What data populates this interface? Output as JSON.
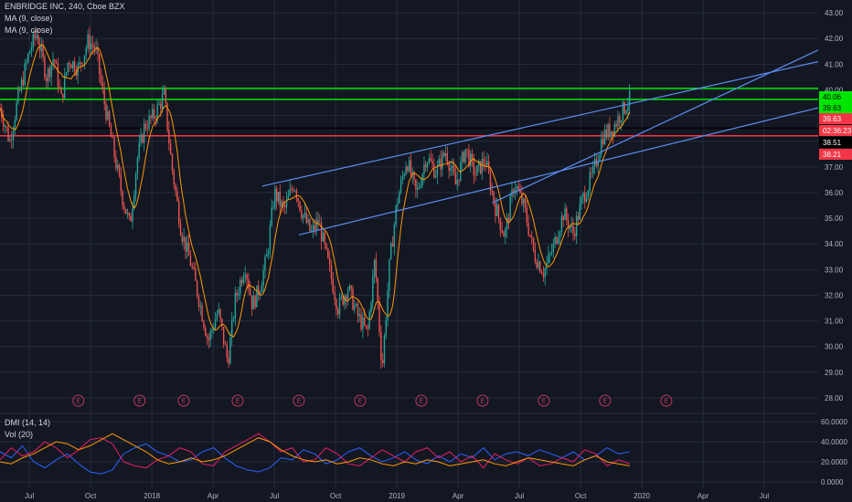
{
  "header": {
    "symbol_line": "ENBRIDGE INC, 240, Cboe BZX",
    "indicator_1": "MA (9, close)",
    "indicator_2": "MA (9, close)"
  },
  "lower_pane": {
    "indicator_1": "DMI (14, 14)",
    "indicator_2": "Vol (20)",
    "y_ticks": [
      "60.0000",
      "40.0000",
      "20.0000",
      "0.0000"
    ]
  },
  "colors": {
    "background": "#131722",
    "grid": "#262b3e",
    "up_candle": "#26a69a",
    "down_candle": "#ef5350",
    "ma_line": "#ff9800",
    "trend_line": "#5b8def",
    "green_level": "#00e600",
    "red_level": "#f23645",
    "black_level": "#000000",
    "di_plus": "#2962ff",
    "di_minus": "#e91e63",
    "adx": "#ff9800"
  },
  "price_tags": [
    {
      "label": "40.06",
      "bg": "#00e600",
      "fg": "#000000"
    },
    {
      "label": "39.63",
      "bg": "#00e600",
      "fg": "#000000"
    },
    {
      "label": "39.63",
      "bg": "#f23645",
      "fg": "#ffffff"
    },
    {
      "label": "02:36:23",
      "bg": "#f23645",
      "fg": "#ffffff"
    },
    {
      "label": "38.51",
      "bg": "#000000",
      "fg": "#ffffff"
    },
    {
      "label": "38.21",
      "bg": "#f23645",
      "fg": "#ffffff"
    }
  ],
  "earnings_marker": "E",
  "earnings_months": [
    2017.7,
    2017.95,
    2018.13,
    2018.35,
    2018.6,
    2018.85,
    2019.1,
    2019.35,
    2019.6,
    2019.85,
    2020.1
  ],
  "chart_data": {
    "type": "candlestick",
    "title": "ENBRIDGE INC, 240, Cboe BZX",
    "xlabel": "",
    "ylabel": "",
    "x_ticks": [
      "Jul",
      "Oct",
      "2018",
      "Apr",
      "Jul",
      "Oct",
      "2019",
      "Apr",
      "Jul",
      "Oct",
      "2020",
      "Apr",
      "Jul"
    ],
    "x_tick_values": [
      2017.5,
      2017.75,
      2018.0,
      2018.25,
      2018.5,
      2018.75,
      2019.0,
      2019.25,
      2019.5,
      2019.75,
      2020.0,
      2020.25,
      2020.5
    ],
    "y_ticks": [
      "43.00",
      "42.00",
      "41.00",
      "40.00",
      "39.00",
      "38.00",
      "37.00",
      "36.00",
      "35.00",
      "34.00",
      "33.00",
      "32.00",
      "31.00",
      "30.00",
      "29.00",
      "28.00"
    ],
    "ylim": [
      27.5,
      43.5
    ],
    "xlim": [
      2017.38,
      2020.72
    ],
    "grid": true,
    "series": [
      {
        "name": "Close",
        "points": [
          [
            2017.38,
            39.3
          ],
          [
            2017.42,
            38.0
          ],
          [
            2017.45,
            39.5
          ],
          [
            2017.5,
            41.5
          ],
          [
            2017.53,
            42.2
          ],
          [
            2017.57,
            40.5
          ],
          [
            2017.6,
            41.3
          ],
          [
            2017.63,
            39.6
          ],
          [
            2017.66,
            41.2
          ],
          [
            2017.7,
            40.8
          ],
          [
            2017.74,
            41.9
          ],
          [
            2017.77,
            41.6
          ],
          [
            2017.8,
            39.8
          ],
          [
            2017.84,
            37.8
          ],
          [
            2017.88,
            35.8
          ],
          [
            2017.91,
            34.7
          ],
          [
            2017.94,
            37.3
          ],
          [
            2017.97,
            38.6
          ],
          [
            2018.01,
            39.0
          ],
          [
            2018.05,
            39.8
          ],
          [
            2018.08,
            37.1
          ],
          [
            2018.12,
            34.5
          ],
          [
            2018.16,
            33.2
          ],
          [
            2018.2,
            31.5
          ],
          [
            2018.23,
            30.2
          ],
          [
            2018.27,
            31.4
          ],
          [
            2018.31,
            29.4
          ],
          [
            2018.34,
            31.8
          ],
          [
            2018.38,
            33.2
          ],
          [
            2018.41,
            31.6
          ],
          [
            2018.44,
            32.3
          ],
          [
            2018.47,
            33.5
          ],
          [
            2018.5,
            36.0
          ],
          [
            2018.54,
            35.3
          ],
          [
            2018.58,
            36.4
          ],
          [
            2018.61,
            35.3
          ],
          [
            2018.65,
            34.4
          ],
          [
            2018.68,
            34.9
          ],
          [
            2018.72,
            33.2
          ],
          [
            2018.76,
            31.5
          ],
          [
            2018.8,
            32.3
          ],
          [
            2018.84,
            31.2
          ],
          [
            2018.88,
            30.5
          ],
          [
            2018.91,
            33.4
          ],
          [
            2018.94,
            29.1
          ],
          [
            2018.97,
            33.2
          ],
          [
            2019.0,
            35.6
          ],
          [
            2019.04,
            37.3
          ],
          [
            2019.08,
            35.9
          ],
          [
            2019.12,
            37.4
          ],
          [
            2019.16,
            36.8
          ],
          [
            2019.2,
            37.6
          ],
          [
            2019.24,
            36.3
          ],
          [
            2019.28,
            37.7
          ],
          [
            2019.32,
            36.7
          ],
          [
            2019.36,
            37.3
          ],
          [
            2019.4,
            35.5
          ],
          [
            2019.44,
            34.3
          ],
          [
            2019.48,
            36.4
          ],
          [
            2019.52,
            35.4
          ],
          [
            2019.56,
            33.6
          ],
          [
            2019.6,
            32.9
          ],
          [
            2019.64,
            33.9
          ],
          [
            2019.68,
            35.2
          ],
          [
            2019.72,
            34.4
          ],
          [
            2019.76,
            35.8
          ],
          [
            2019.8,
            36.7
          ],
          [
            2019.84,
            38.2
          ],
          [
            2019.88,
            38.5
          ],
          [
            2019.91,
            39.0
          ],
          [
            2019.95,
            39.63
          ]
        ]
      }
    ],
    "horizontal_levels": [
      {
        "name": "green_upper",
        "value": 40.06
      },
      {
        "name": "green_lower",
        "value": 39.63
      },
      {
        "name": "black",
        "value": 38.51
      },
      {
        "name": "red",
        "value": 38.21
      }
    ],
    "trend_lines": [
      {
        "from": [
          2018.45,
          36.25
        ],
        "to": [
          2020.72,
          41.1
        ]
      },
      {
        "from": [
          2018.6,
          34.35
        ],
        "to": [
          2020.72,
          39.3
        ]
      },
      {
        "from": [
          2019.39,
          35.6
        ],
        "to": [
          2020.72,
          41.55
        ]
      }
    ],
    "lower_pane": {
      "type": "line",
      "ylim": [
        0,
        60
      ],
      "series": [
        {
          "name": "DMI +DI",
          "values": [
            30,
            24,
            36,
            20,
            14,
            22,
            28,
            18,
            10,
            8,
            12,
            28,
            34,
            38,
            30,
            26,
            20,
            22,
            30,
            34,
            24,
            16,
            12,
            10,
            14,
            24,
            22,
            32,
            28,
            18,
            22,
            30,
            34,
            26,
            20,
            24,
            30,
            22,
            18,
            26,
            20,
            28,
            24,
            34,
            22,
            28,
            30,
            26,
            32,
            28,
            24,
            30,
            22,
            26,
            34,
            28,
            30
          ]
        },
        {
          "name": "DMI -DI",
          "values": [
            22,
            34,
            26,
            30,
            40,
            34,
            24,
            32,
            42,
            44,
            38,
            20,
            16,
            14,
            22,
            26,
            34,
            30,
            18,
            16,
            30,
            36,
            42,
            48,
            40,
            30,
            34,
            20,
            22,
            34,
            28,
            18,
            16,
            24,
            32,
            26,
            20,
            30,
            34,
            24,
            30,
            20,
            26,
            14,
            28,
            22,
            18,
            24,
            16,
            18,
            24,
            20,
            32,
            28,
            16,
            22,
            18
          ]
        },
        {
          "name": "ADX",
          "values": [
            20,
            18,
            24,
            28,
            34,
            40,
            38,
            32,
            36,
            42,
            48,
            42,
            36,
            30,
            22,
            18,
            20,
            24,
            20,
            22,
            26,
            32,
            38,
            44,
            40,
            32,
            26,
            22,
            20,
            22,
            18,
            20,
            24,
            22,
            18,
            16,
            20,
            18,
            22,
            20,
            16,
            18,
            20,
            22,
            18,
            16,
            20,
            24,
            22,
            20,
            18,
            16,
            22,
            26,
            20,
            18,
            16
          ]
        }
      ]
    }
  }
}
